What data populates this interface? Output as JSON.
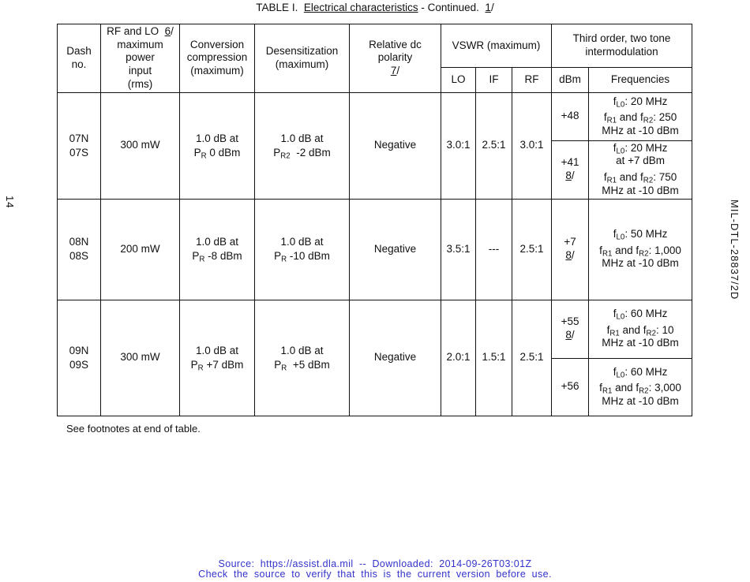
{
  "page": {
    "title": "TABLE I.  ^Electrical characteristics^ - Continued.  ^1^/",
    "left_page_number": "14",
    "right_doc_id": "MIL-DTL-28837/2D",
    "footnote": "See footnotes at end of table.",
    "footer": {
      "line1": "Source: https://assist.dla.mil -- Downloaded: 2014-09-26T03:01Z",
      "line2": "Check the source to verify that this is the current version before use.",
      "color": "#3333cc"
    }
  },
  "table": {
    "headers": {
      "dash": "Dash\nno.",
      "rf_lo": "RF and LO  ^6^/\nmaximum\npower\ninput\n(rms)",
      "conversion": "Conversion\ncompression\n(maximum)",
      "desensitization": "Desensitization\n(maximum)",
      "polarity": "Relative dc\npolarity\n^7^/",
      "vswr": "VSWR (maximum)",
      "third_order": "Third order, two tone\nintermodulation",
      "lo": "LO",
      "if": "IF",
      "rf": "RF",
      "dbm": "dBm",
      "frequencies": "Frequencies"
    },
    "rows": [
      {
        "dash": "07N\n07S",
        "power": "300 mW",
        "conversion": "1.0 dB at\nP~R~ 0 dBm",
        "desensitization": "1.0 dB at\nP~R2~  -2 dBm",
        "polarity": "Negative",
        "vswr_lo": "3.0:1",
        "vswr_if": "2.5:1",
        "vswr_rf": "3.0:1",
        "sub_rows": [
          {
            "dbm": "+48",
            "freq_lo": "f~L0~: 20 MHz",
            "freq_r": "f~R1~ and f~R2~: 250\nMHz at -10 dBm"
          },
          {
            "dbm": "+41\n^8^/",
            "freq_lo": "f~L0~: 20 MHz\nat +7 dBm",
            "freq_r": "f~R1~ and f~R2~: 750\nMHz at -10 dBm"
          }
        ]
      },
      {
        "dash": "08N\n08S",
        "power": "200 mW",
        "conversion": "1.0 dB at\nP~R~ -8 dBm",
        "desensitization": "1.0 dB at\nP~R~ -10 dBm",
        "polarity": "Negative",
        "vswr_lo": "3.5:1",
        "vswr_if": "---",
        "vswr_rf": "2.5:1",
        "sub_rows": [
          {
            "dbm": "+7\n^8^/",
            "freq_lo": "f~L0~: 50 MHz",
            "freq_r": "f~R1~ and f~R2~: 1,000\nMHz at -10 dBm"
          }
        ]
      },
      {
        "dash": "09N\n09S",
        "power": "300 mW",
        "conversion": "1.0 dB at\nP~R~ +7 dBm",
        "desensitization": "1.0 dB at\nP~R~  +5 dBm",
        "polarity": "Negative",
        "vswr_lo": "2.0:1",
        "vswr_if": "1.5:1",
        "vswr_rf": "2.5:1",
        "sub_rows": [
          {
            "dbm": "+55\n^8^/",
            "freq_lo": "f~L0~: 60 MHz",
            "freq_r": "f~R1~ and f~R2~: 10\nMHz at -10 dBm"
          },
          {
            "dbm": "+56",
            "freq_lo": "f~L0~: 60 MHz",
            "freq_r": "f~R1~ and f~R2~: 3,000\nMHz at -10 dBm"
          }
        ]
      }
    ]
  }
}
